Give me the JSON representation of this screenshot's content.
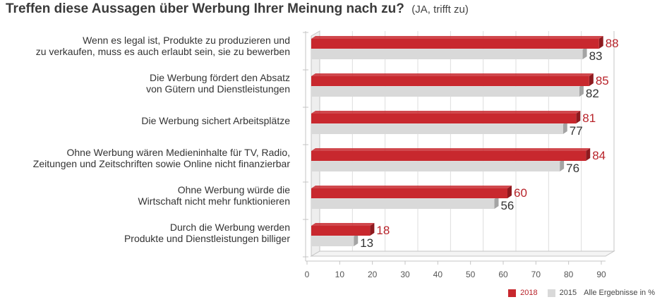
{
  "title": "Treffen diese Aussagen über Werbung Ihrer Meinung nach zu?",
  "subtitle": "(JA, trifft zu)",
  "note": "Alle Ergebnisse in %",
  "colors": {
    "s2018": "#c8282e",
    "s2018_side": "#8e1a1f",
    "s2015": "#d9d9d9",
    "s2015_side": "#a4a4a4",
    "axis": "#c4c4c4",
    "grid": "#dddddd"
  },
  "chart_data": {
    "type": "bar",
    "orientation": "horizontal",
    "categories": [
      [
        "Wenn es legal ist, Produkte zu produzieren und",
        "zu verkaufen, muss es auch erlaubt sein, sie zu bewerben"
      ],
      [
        "Die Werbung fördert den Absatz",
        "von Gütern und Dienstleistungen"
      ],
      [
        "Die Werbung sichert Arbeitsplätze"
      ],
      [
        "Ohne Werbung wären Medieninhalte für TV, Radio,",
        "Zeitungen und Zeitschriften sowie Online nicht finanzierbar"
      ],
      [
        "Ohne Werbung würde die",
        "Wirtschaft nicht mehr funktionieren"
      ],
      [
        "Durch die Werbung werden",
        "Produkte und Dienstleistungen billiger"
      ]
    ],
    "series": [
      {
        "name": "2018",
        "values": [
          88,
          85,
          81,
          84,
          60,
          18
        ]
      },
      {
        "name": "2015",
        "values": [
          83,
          82,
          77,
          76,
          56,
          13
        ]
      }
    ],
    "xlim": [
      0,
      90
    ],
    "xticks": [
      0,
      10,
      20,
      30,
      40,
      50,
      60,
      70,
      80,
      90
    ],
    "grid": true,
    "legend_position": "bottom-right"
  }
}
